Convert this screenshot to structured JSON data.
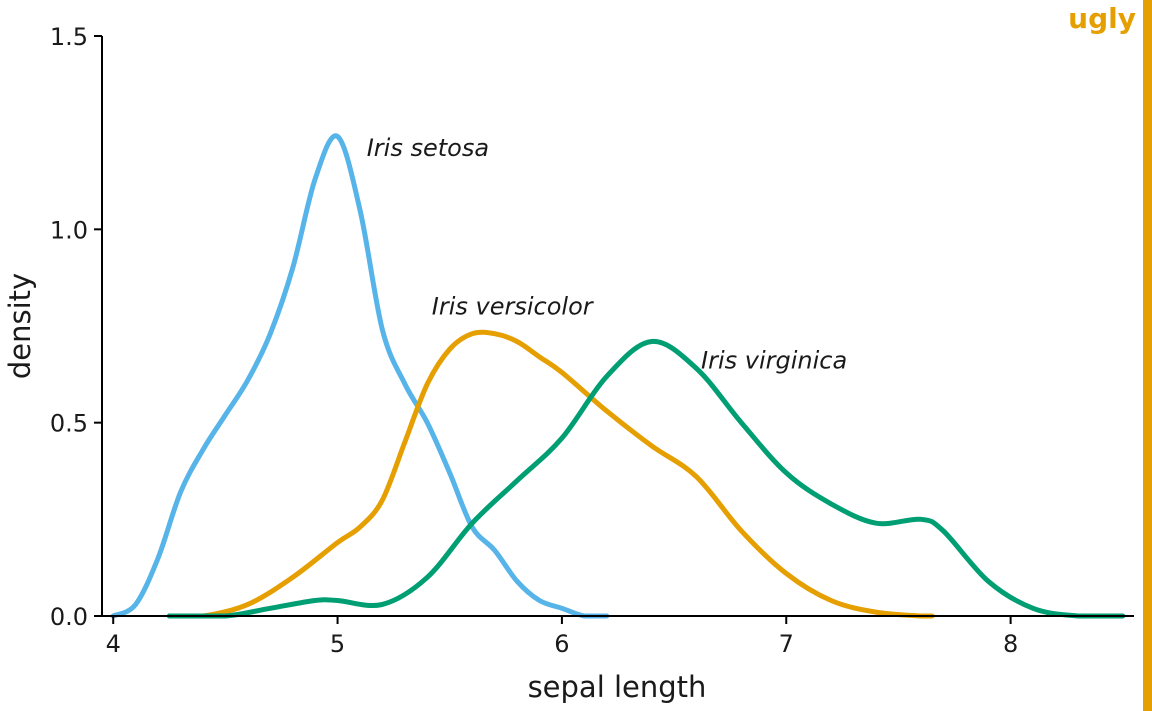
{
  "badge": {
    "text": "ugly",
    "color": "#E69F00"
  },
  "chart_data": {
    "type": "line",
    "title": "",
    "xlabel": "sepal length",
    "ylabel": "density",
    "xlim": [
      3.95,
      8.55
    ],
    "ylim": [
      0,
      1.5
    ],
    "xticks": [
      4,
      5,
      6,
      7,
      8
    ],
    "yticks": [
      0.0,
      0.5,
      1.0,
      1.5
    ],
    "ytick_labels": [
      "0.0",
      "0.5",
      "1.0",
      "1.5"
    ],
    "grid": false,
    "legend": "none",
    "series": [
      {
        "name": "Iris setosa",
        "color": "#56B4E9",
        "label_at": [
          5.13,
          1.19
        ],
        "x": [
          4.0,
          4.1,
          4.2,
          4.3,
          4.4,
          4.5,
          4.6,
          4.7,
          4.8,
          4.9,
          5.0,
          5.1,
          5.2,
          5.3,
          5.4,
          5.5,
          5.6,
          5.7,
          5.8,
          5.9,
          6.0,
          6.1,
          6.2
        ],
        "y": [
          0.0,
          0.03,
          0.15,
          0.32,
          0.43,
          0.52,
          0.61,
          0.73,
          0.9,
          1.13,
          1.24,
          1.05,
          0.74,
          0.6,
          0.5,
          0.37,
          0.23,
          0.17,
          0.09,
          0.04,
          0.02,
          0.0,
          0.0
        ]
      },
      {
        "name": "Iris versicolor",
        "color": "#E69F00",
        "label_at": [
          5.42,
          0.78
        ],
        "x": [
          4.25,
          4.4,
          4.6,
          4.8,
          5.0,
          5.1,
          5.2,
          5.3,
          5.4,
          5.5,
          5.6,
          5.7,
          5.8,
          5.9,
          6.0,
          6.2,
          6.4,
          6.6,
          6.8,
          7.0,
          7.2,
          7.4,
          7.6,
          7.65
        ],
        "y": [
          0.0,
          0.0,
          0.03,
          0.1,
          0.19,
          0.23,
          0.3,
          0.45,
          0.6,
          0.69,
          0.73,
          0.73,
          0.71,
          0.67,
          0.63,
          0.53,
          0.44,
          0.36,
          0.22,
          0.11,
          0.04,
          0.01,
          0.0,
          0.0
        ]
      },
      {
        "name": "Iris virginica",
        "color": "#009E73",
        "label_at": [
          6.62,
          0.64
        ],
        "x": [
          4.25,
          4.5,
          4.7,
          4.9,
          5.0,
          5.2,
          5.4,
          5.6,
          5.8,
          6.0,
          6.2,
          6.4,
          6.6,
          6.8,
          7.0,
          7.2,
          7.4,
          7.6,
          7.7,
          7.9,
          8.1,
          8.3,
          8.5
        ],
        "y": [
          0.0,
          0.0,
          0.02,
          0.04,
          0.04,
          0.03,
          0.1,
          0.24,
          0.35,
          0.46,
          0.62,
          0.71,
          0.64,
          0.5,
          0.37,
          0.29,
          0.24,
          0.25,
          0.22,
          0.09,
          0.02,
          0.0,
          0.0
        ]
      }
    ]
  }
}
